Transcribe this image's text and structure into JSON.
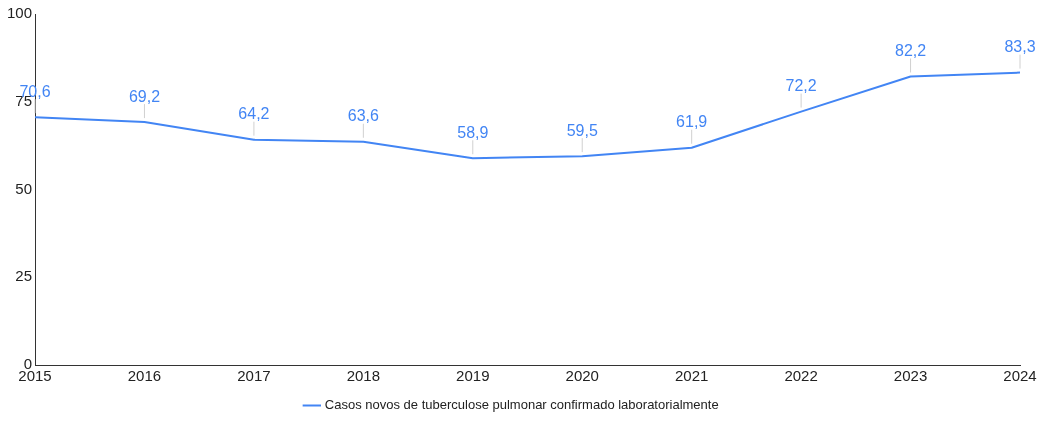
{
  "chart_data": {
    "type": "line",
    "x": [
      2015,
      2016,
      2017,
      2018,
      2019,
      2020,
      2021,
      2022,
      2023,
      2024
    ],
    "series": [
      {
        "name": "Casos novos de tuberculose pulmonar confirmado laboratorialmente",
        "color": "#4285f4",
        "values": [
          70.6,
          69.2,
          64.2,
          63.6,
          58.9,
          59.5,
          61.9,
          72.2,
          82.2,
          83.3
        ],
        "value_labels": [
          "70,6",
          "69,2",
          "64,2",
          "63,6",
          "58,9",
          "59,5",
          "61,9",
          "72,2",
          "82,2",
          "83,3"
        ]
      }
    ],
    "xlim": [
      2015,
      2024
    ],
    "xticks": [
      2015,
      2016,
      2017,
      2018,
      2019,
      2020,
      2021,
      2022,
      2023,
      2024
    ],
    "ylim": [
      0,
      100
    ],
    "yticks": [
      0,
      25,
      50,
      75,
      100
    ],
    "grid": false,
    "legend": "bottom",
    "marker": "none",
    "line_style": "solid"
  }
}
